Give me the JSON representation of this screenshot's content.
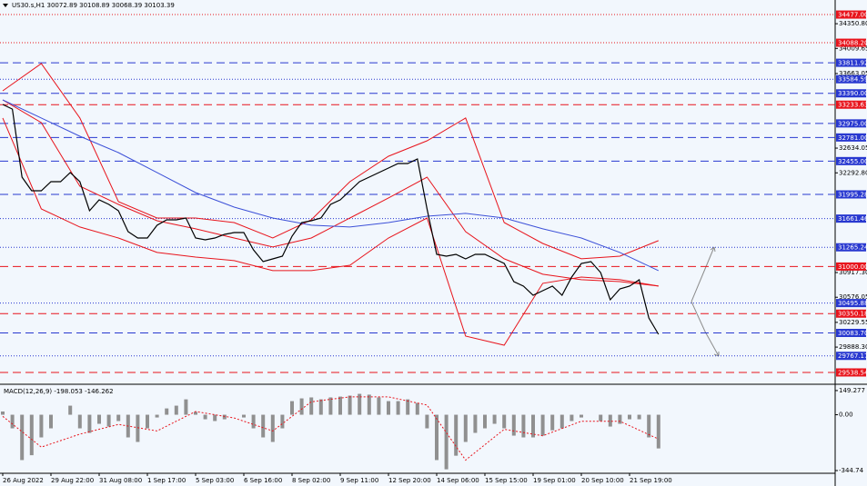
{
  "chart_data": [
    {
      "type": "line",
      "title": "US30.s,H1  30072.89 30108.89 30068.39 30103.39",
      "categories": [
        "26 Aug 2022",
        null,
        null,
        null,
        null,
        "29 Aug 22:00",
        null,
        null,
        null,
        null,
        "31 Aug 08:00",
        null,
        null,
        null,
        null,
        "1 Sep 17:00",
        null,
        null,
        null,
        null,
        "5 Sep 03:00",
        null,
        null,
        null,
        null,
        "6 Sep 16:00",
        null,
        null,
        null,
        null,
        "8 Sep 02:00",
        null,
        null,
        null,
        null,
        "9 Sep 11:00",
        null,
        null,
        null,
        null,
        "12 Sep 20:00",
        null,
        null,
        null,
        null,
        "14 Sep 06:00",
        null,
        null,
        null,
        null,
        "15 Sep 15:00",
        null,
        null,
        null,
        null,
        "19 Sep 01:00",
        null,
        null,
        null,
        null,
        "20 Sep 10:00",
        null,
        null,
        null,
        null,
        "21 Sep 19:00",
        null,
        null,
        null
      ],
      "series": [
        {
          "color": "#000000",
          "values": [
            33236,
            33173,
            32233,
            32045,
            32045,
            32171,
            32171,
            32296,
            32171,
            31770,
            31920,
            31857,
            31770,
            31481,
            31394,
            31394,
            31569,
            31644,
            31644,
            31669,
            31394,
            31369,
            31394,
            31444,
            31469,
            31469,
            31231,
            31068,
            31105,
            31143,
            31419,
            31607,
            31632,
            31669,
            31857,
            31920,
            32045,
            32171,
            32233,
            32296,
            32359,
            32421,
            32421,
            32484,
            31795,
            31168,
            31143,
            31168,
            31105,
            31168,
            31168,
            31105,
            31043,
            30792,
            30729,
            30604,
            30667,
            30729,
            30604,
            30855,
            31043,
            31068,
            30917,
            30541,
            30692,
            30729,
            30817,
            30291,
            30065
          ]
        }
      ],
      "overlays": [
        {
          "color": "#e8141c",
          "x": [
            0,
            4,
            8,
            12,
            16,
            20,
            24,
            28,
            32,
            36,
            40,
            44,
            48,
            52,
            56,
            60,
            64,
            68
          ],
          "values": [
            33425,
            33801,
            33049,
            31895,
            31670,
            31670,
            31607,
            31394,
            31645,
            32171,
            32522,
            32735,
            33049,
            31607,
            31319,
            31106,
            31143,
            31357
          ]
        },
        {
          "color": "#e8141c",
          "x": [
            0,
            4,
            8,
            12,
            16,
            20,
            24,
            28,
            32,
            36,
            40,
            44,
            48,
            52,
            56,
            60,
            64,
            68
          ],
          "values": [
            33299,
            32986,
            32108,
            31858,
            31632,
            31520,
            31394,
            31269,
            31394,
            31670,
            31946,
            32234,
            31482,
            31106,
            30893,
            30818,
            30792,
            30730
          ]
        },
        {
          "color": "#e8141c",
          "x": [
            0,
            4,
            8,
            12,
            16,
            20,
            24,
            28,
            32,
            36,
            40,
            44,
            48,
            52,
            56,
            60,
            64,
            68
          ],
          "values": [
            33049,
            31795,
            31545,
            31394,
            31194,
            31131,
            31081,
            30943,
            30943,
            31018,
            31394,
            31670,
            30040,
            29915,
            30768,
            30855,
            30818,
            30730
          ]
        },
        {
          "color": "#3c50d8",
          "x": [
            0,
            4,
            8,
            12,
            16,
            20,
            24,
            28,
            32,
            36,
            40,
            44,
            48,
            52,
            56,
            60,
            64,
            68
          ],
          "values": [
            33299,
            33049,
            32798,
            32572,
            32297,
            32021,
            31820,
            31670,
            31570,
            31545,
            31607,
            31695,
            31733,
            31670,
            31520,
            31394,
            31194,
            30943
          ]
        }
      ],
      "levels": [
        {
          "value": 34477,
          "label": "34477.00",
          "color": "#e8141c",
          "style": "dotted"
        },
        {
          "value": 34088.2,
          "label": "34088.20",
          "color": "#e8141c",
          "style": "dotted"
        },
        {
          "value": 33811.92,
          "label": "33811.92",
          "color": "#2838d0",
          "style": "dashed"
        },
        {
          "value": 33584.59,
          "label": "33584.59",
          "color": "#2838d0",
          "style": "dotted"
        },
        {
          "value": 33390,
          "label": "33390.00",
          "color": "#2838d0",
          "style": "dashed"
        },
        {
          "value": 33233.63,
          "label": "33233.63",
          "color": "#e8141c",
          "style": "dashed"
        },
        {
          "value": 32975,
          "label": "32975.00",
          "color": "#2838d0",
          "style": "dashed"
        },
        {
          "value": 32781,
          "label": "32781.00",
          "color": "#2838d0",
          "style": "dashed"
        },
        {
          "value": 32455,
          "label": "32455.00",
          "color": "#2838d0",
          "style": "dashed"
        },
        {
          "value": 31995.28,
          "label": "31995.28",
          "color": "#2838d0",
          "style": "dashed"
        },
        {
          "value": 31661.46,
          "label": "31661.46",
          "color": "#2838d0",
          "style": "dotted"
        },
        {
          "value": 31265.24,
          "label": "31265.24",
          "color": "#2838d0",
          "style": "dotted"
        },
        {
          "value": 31000,
          "label": "31000.00",
          "color": "#e8141c",
          "style": "dashed"
        },
        {
          "value": 30495.88,
          "label": "30495.88",
          "color": "#2838d0",
          "style": "dotted"
        },
        {
          "value": 30350.18,
          "label": "30350.18",
          "color": "#e8141c",
          "style": "dashed"
        },
        {
          "value": 30083.7,
          "label": "30083.70",
          "color": "#2838d0",
          "style": "dashed"
        },
        {
          "value": 29767.17,
          "label": "29767.17",
          "color": "#2838d0",
          "style": "dotted"
        },
        {
          "value": 29538.54,
          "label": "29538.54",
          "color": "#e8141c",
          "style": "dashed"
        }
      ],
      "ylim": [
        29413,
        34678
      ],
      "yticks": [
        {
          "value": 34350.8,
          "label": "34350.80"
        },
        {
          "value": 34009.65,
          "label": "34009.65"
        },
        {
          "value": 33663.05,
          "label": "33663.05"
        },
        {
          "value": 32634.05,
          "label": "32634.05"
        },
        {
          "value": 32292.8,
          "label": "32292.80"
        },
        {
          "value": 30917.3,
          "label": "30917.30"
        },
        {
          "value": 30576.05,
          "label": "30576.05"
        },
        {
          "value": 30229.55,
          "label": "30229.55"
        },
        {
          "value": 29888.3,
          "label": "29888.30"
        }
      ]
    },
    {
      "type": "bar",
      "title": "MACD(12,26,9) -198.053 -146.262",
      "color": "#909090",
      "values": [
        20,
        -84,
        -280,
        -250,
        -140,
        -84,
        0,
        56,
        -84,
        -112,
        -56,
        -73,
        -39,
        -140,
        -168,
        -84,
        -17,
        39,
        56,
        95,
        17,
        -28,
        -39,
        -28,
        0,
        -17,
        -84,
        -140,
        -168,
        -84,
        84,
        101,
        107,
        95,
        107,
        112,
        118,
        129,
        124,
        107,
        84,
        84,
        95,
        73,
        -84,
        -280,
        -337,
        -253,
        -168,
        -112,
        -84,
        -56,
        -84,
        -129,
        -140,
        -140,
        -129,
        -96,
        -84,
        -39,
        -17,
        0,
        -39,
        -73,
        -56,
        -28,
        -28,
        -140,
        -208
      ],
      "overlays": [
        {
          "color": "#e8141c",
          "x": [
            0,
            4,
            8,
            12,
            16,
            20,
            24,
            28,
            32,
            36,
            40,
            44,
            48,
            52,
            56,
            60,
            64,
            68
          ],
          "values": [
            -10,
            -200,
            -120,
            -60,
            -100,
            20,
            -20,
            -100,
            80,
            110,
            110,
            60,
            -280,
            -90,
            -130,
            -40,
            -40,
            -150
          ]
        }
      ],
      "ylim": [
        -384,
        177
      ],
      "yticks": [
        149.277,
        {
          "value": 0,
          "label": "0.00"
        },
        -344.74
      ]
    }
  ]
}
